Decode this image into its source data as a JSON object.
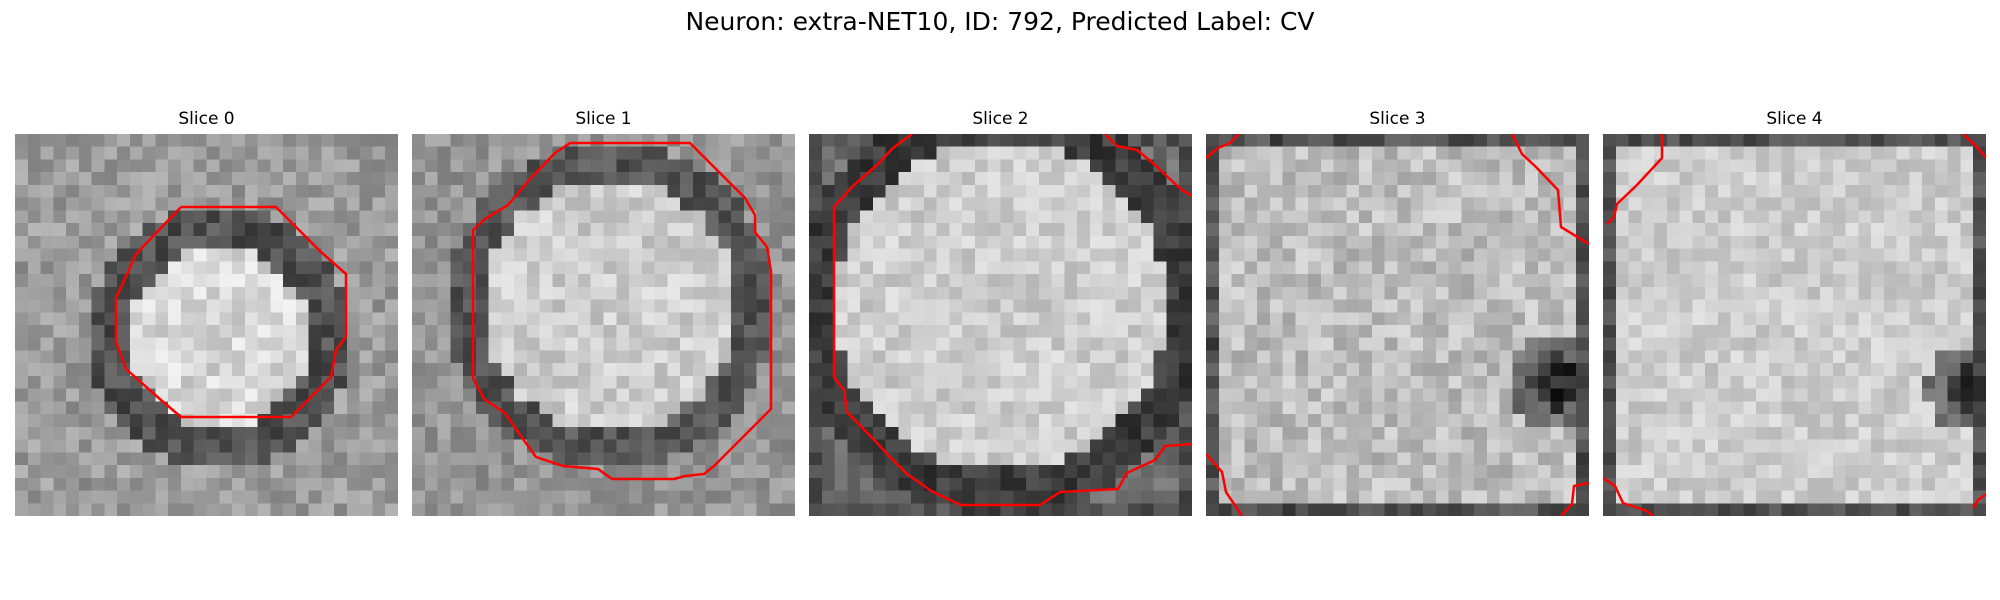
{
  "figure": {
    "title": "Neuron: extra-NET10, ID: 792, Predicted Label: CV"
  },
  "slices": [
    {
      "title": "Slice 0"
    },
    {
      "title": "Slice 1"
    },
    {
      "title": "Slice 2"
    },
    {
      "title": "Slice 3"
    },
    {
      "title": "Slice 4"
    }
  ],
  "contour_color": "#ff0000"
}
